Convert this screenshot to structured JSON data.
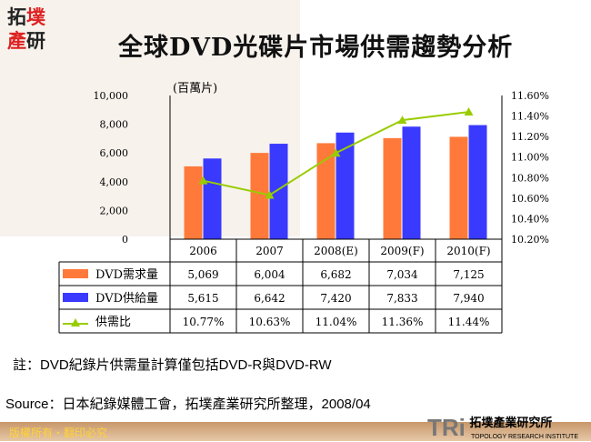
{
  "logo": {
    "l1": "拓",
    "l2": "墣",
    "l3": "產",
    "l4": "研"
  },
  "title": "全球DVD光碟片市場供需趨勢分析",
  "chart_data": {
    "type": "bar+line",
    "unit": "(百萬片)",
    "categories": [
      "2006",
      "2007",
      "2008(E)",
      "2009(F)",
      "2010(F)"
    ],
    "series": [
      {
        "name": "DVD需求量",
        "type": "bar",
        "color": "#ff7a3a",
        "values": [
          5069,
          6004,
          6682,
          7034,
          7125
        ],
        "labels": [
          "5,069",
          "6,004",
          "6,682",
          "7,034",
          "7,125"
        ]
      },
      {
        "name": "DVD供給量",
        "type": "bar",
        "color": "#3a3aff",
        "values": [
          5615,
          6642,
          7420,
          7833,
          7940
        ],
        "labels": [
          "5,615",
          "6,642",
          "7,420",
          "7,833",
          "7,940"
        ]
      },
      {
        "name": "供需比",
        "type": "line",
        "axis": "right",
        "color": "#99cc00",
        "values": [
          10.77,
          10.63,
          11.04,
          11.36,
          11.44
        ],
        "labels": [
          "10.77%",
          "10.63%",
          "11.04%",
          "11.36%",
          "11.44%"
        ]
      }
    ],
    "ylim": [
      0,
      10000
    ],
    "yticks": [
      "0",
      "2,000",
      "4,000",
      "6,000",
      "8,000",
      "10,000"
    ],
    "y2lim": [
      10.2,
      11.6
    ],
    "y2ticks": [
      "10.20%",
      "10.40%",
      "10.60%",
      "10.80%",
      "11.00%",
      "11.20%",
      "11.40%",
      "11.60%"
    ]
  },
  "note": "註：DVD紀錄片供需量計算僅包括DVD-R與DVD-RW",
  "source": "Source：日本紀錄媒體工會，拓墣產業研究所整理，2008/04",
  "footer": {
    "copyright": "版權所有・翻印必究",
    "brand": "TRi",
    "brand_cn": "拓墣產業研究所",
    "brand_en": "TOPOLOGY RESEARCH INSTITUTE"
  }
}
